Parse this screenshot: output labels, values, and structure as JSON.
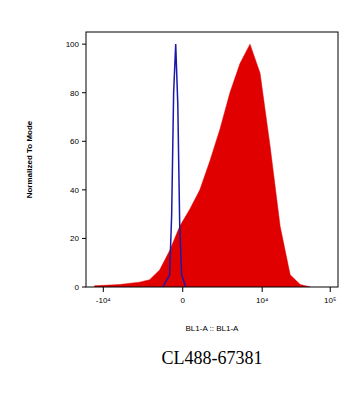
{
  "chart_data": {
    "type": "area",
    "title": "CL488-67381",
    "x_label": "BL1-A :: BL1-A",
    "y_label": "Normalized To Mode",
    "xlim": [
      -18000,
      130000
    ],
    "xticks": [
      {
        "value": -10000,
        "label": "-10⁴"
      },
      0,
      {
        "value": 10000,
        "label": "10⁴"
      },
      {
        "value": 100000,
        "label": "10⁵"
      }
    ],
    "ylim": [
      0,
      105
    ],
    "yticks": [
      0,
      20,
      40,
      60,
      80,
      100
    ],
    "grid": false,
    "series": [
      {
        "type": "area",
        "color": "#e00000",
        "x": [
          -13500,
          -5750,
          -2790,
          -1880,
          -1185,
          -625,
          -140,
          330,
          840,
          1450,
          2220,
          3240,
          4650,
          6590,
          9310,
          13090,
          18400,
          25850,
          36300,
          50900
        ],
        "values": [
          0.5,
          1,
          2,
          3,
          7,
          15,
          25,
          32,
          40,
          52,
          65,
          80,
          92,
          100,
          88,
          58,
          25,
          5,
          1,
          0
        ]
      },
      {
        "type": "line",
        "color": "#1a1aa8",
        "x": [
          -1000,
          -630,
          -525,
          -430,
          -330,
          -230,
          -140,
          -50,
          140
        ],
        "values": [
          0,
          5,
          30,
          80,
          100,
          75,
          25,
          5,
          0
        ]
      }
    ]
  }
}
